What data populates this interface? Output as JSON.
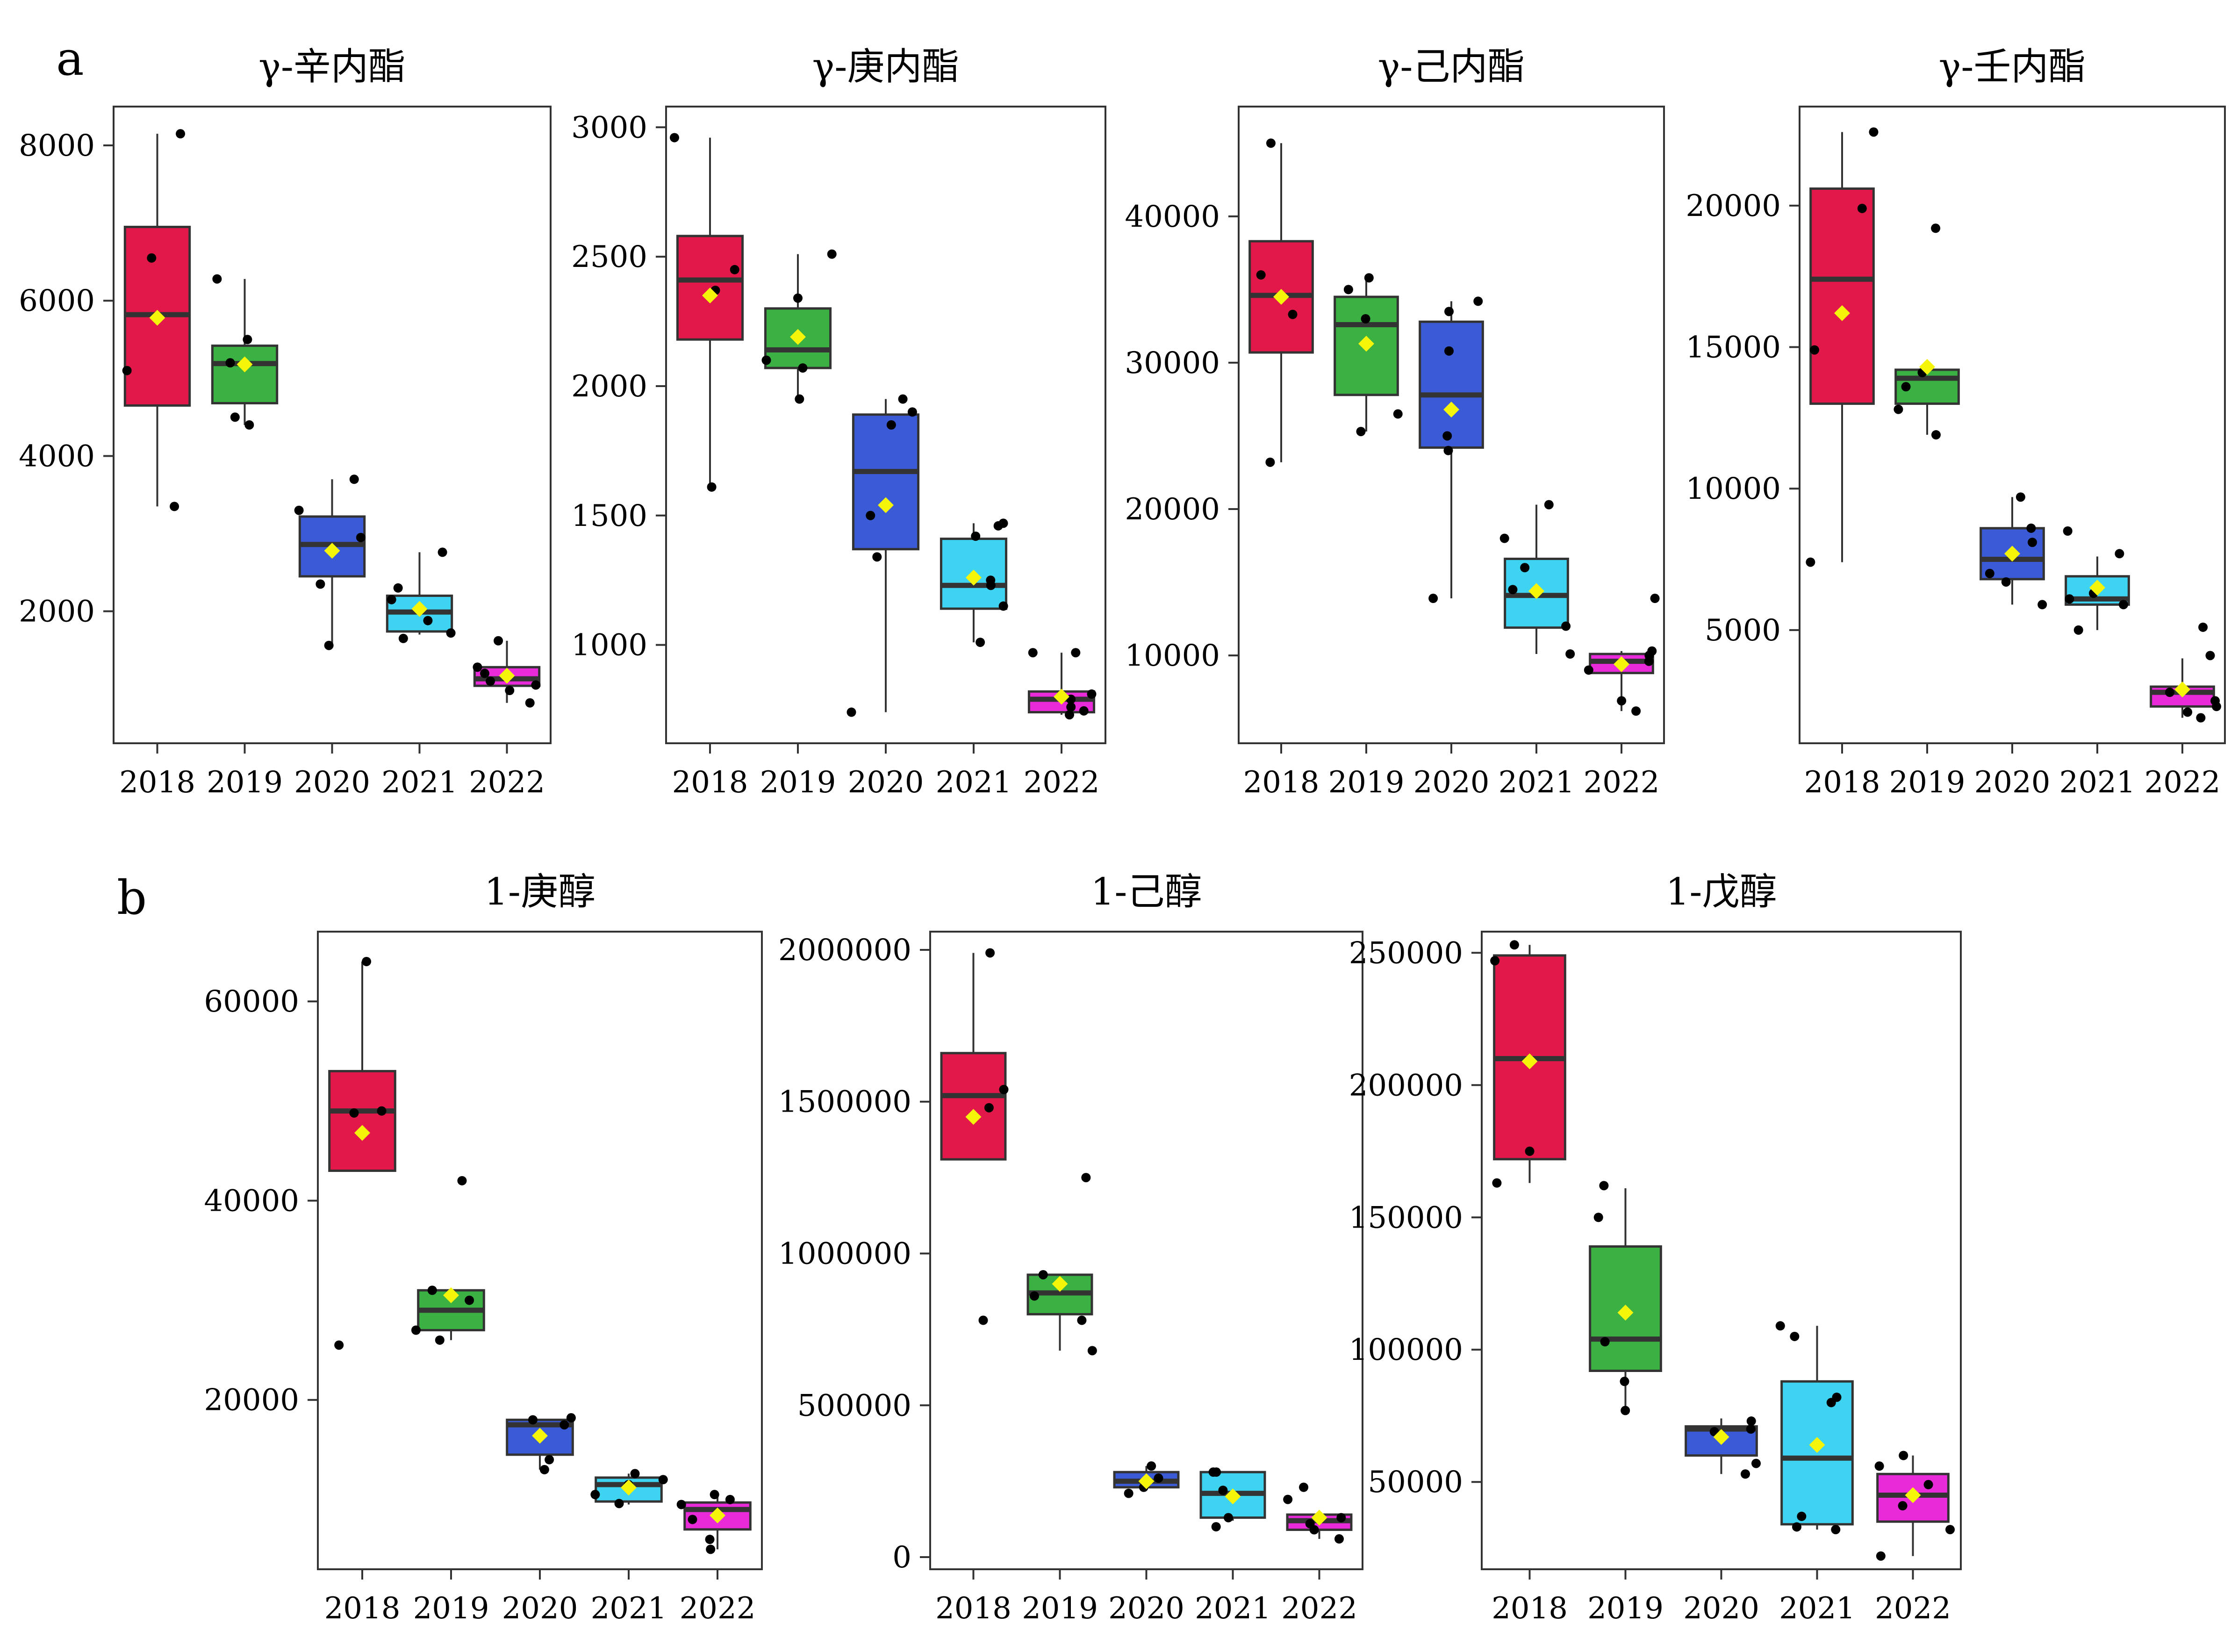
{
  "figure": {
    "panel_labels": [
      "a",
      "b"
    ]
  },
  "colors": {
    "box": [
      "#E3184A",
      "#3BB143",
      "#3B5BD6",
      "#3FD3F2",
      "#E82AD9"
    ],
    "mean_marker": "#F5F50A",
    "points": "#000000",
    "median": "#333333",
    "frame": "#333333"
  },
  "chart_data": [
    {
      "type": "box",
      "panel": "a",
      "title": "γ-辛内酯",
      "categories": [
        "2018",
        "2019",
        "2020",
        "2021",
        "2022"
      ],
      "ylim": [
        300,
        8500
      ],
      "yticks": [
        2000,
        4000,
        6000,
        8000
      ],
      "ytick_labels": [
        "2000",
        "4000",
        "6000",
        "8000"
      ],
      "boxes": [
        {
          "whislo": 3350,
          "q1": 4650,
          "med": 5820,
          "q3": 6950,
          "whishi": 8150,
          "mean": 5780,
          "points": [
            3350,
            5100,
            6550,
            8150
          ]
        },
        {
          "whislo": 4400,
          "q1": 4680,
          "med": 5190,
          "q3": 5420,
          "whishi": 6280,
          "mean": 5180,
          "points": [
            4400,
            4500,
            5200,
            5500,
            6280
          ]
        },
        {
          "whislo": 1560,
          "q1": 2450,
          "med": 2860,
          "q3": 3220,
          "whishi": 3700,
          "mean": 2780,
          "points": [
            1560,
            2350,
            2950,
            3300,
            3700
          ]
        },
        {
          "whislo": 1700,
          "q1": 1740,
          "med": 1990,
          "q3": 2200,
          "whishi": 2760,
          "mean": 2030,
          "points": [
            1650,
            1720,
            1880,
            2150,
            2300,
            2760
          ]
        },
        {
          "whislo": 820,
          "q1": 1040,
          "med": 1130,
          "q3": 1280,
          "whishi": 1620,
          "mean": 1170,
          "points": [
            820,
            980,
            1050,
            1100,
            1200,
            1280,
            1620
          ]
        }
      ]
    },
    {
      "type": "box",
      "panel": "a",
      "title": "γ-庚内酯",
      "categories": [
        "2018",
        "2019",
        "2020",
        "2021",
        "2022"
      ],
      "ylim": [
        620,
        3080
      ],
      "yticks": [
        1000,
        1500,
        2000,
        2500,
        3000
      ],
      "ytick_labels": [
        "1000",
        "1500",
        "2000",
        "2500",
        "3000"
      ],
      "boxes": [
        {
          "whislo": 1610,
          "q1": 2180,
          "med": 2410,
          "q3": 2580,
          "whishi": 2960,
          "mean": 2350,
          "points": [
            1610,
            2370,
            2450,
            2960
          ]
        },
        {
          "whislo": 1950,
          "q1": 2070,
          "med": 2140,
          "q3": 2300,
          "whishi": 2510,
          "mean": 2190,
          "points": [
            1950,
            2070,
            2100,
            2340,
            2510
          ]
        },
        {
          "whislo": 740,
          "q1": 1370,
          "med": 1670,
          "q3": 1890,
          "whishi": 1950,
          "mean": 1540,
          "points": [
            740,
            1340,
            1500,
            1850,
            1900,
            1950
          ]
        },
        {
          "whislo": 1010,
          "q1": 1140,
          "med": 1230,
          "q3": 1410,
          "whishi": 1470,
          "mean": 1260,
          "points": [
            1010,
            1150,
            1230,
            1250,
            1420,
            1460,
            1470
          ]
        },
        {
          "whislo": 730,
          "q1": 740,
          "med": 790,
          "q3": 820,
          "whishi": 970,
          "mean": 800,
          "points": [
            730,
            745,
            760,
            790,
            810,
            970,
            970
          ]
        }
      ]
    },
    {
      "type": "box",
      "panel": "a",
      "title": "γ-己内酯",
      "categories": [
        "2018",
        "2019",
        "2020",
        "2021",
        "2022"
      ],
      "ylim": [
        4000,
        47500
      ],
      "yticks": [
        10000,
        20000,
        30000,
        40000
      ],
      "ytick_labels": [
        "10000",
        "20000",
        "30000",
        "40000"
      ],
      "boxes": [
        {
          "whislo": 23200,
          "q1": 30700,
          "med": 34600,
          "q3": 38300,
          "whishi": 45000,
          "mean": 34500,
          "points": [
            23200,
            33300,
            36000,
            45000
          ]
        },
        {
          "whislo": 25300,
          "q1": 27800,
          "med": 32600,
          "q3": 34500,
          "whishi": 35800,
          "mean": 31300,
          "points": [
            25300,
            26500,
            33000,
            35000,
            35800
          ]
        },
        {
          "whislo": 13900,
          "q1": 24200,
          "med": 27800,
          "q3": 32800,
          "whishi": 34200,
          "mean": 26800,
          "points": [
            13900,
            24000,
            25000,
            30800,
            33500,
            34200
          ]
        },
        {
          "whislo": 10100,
          "q1": 11900,
          "med": 14100,
          "q3": 16600,
          "whishi": 20300,
          "mean": 14400,
          "points": [
            10100,
            12000,
            14500,
            16000,
            18000,
            20300
          ]
        },
        {
          "whislo": 6200,
          "q1": 8800,
          "med": 9600,
          "q3": 10100,
          "whishi": 10300,
          "mean": 9400,
          "points": [
            6200,
            6900,
            9000,
            9600,
            10000,
            10300,
            13900
          ]
        }
      ]
    },
    {
      "type": "box",
      "panel": "a",
      "title": "γ-壬内酯",
      "categories": [
        "2018",
        "2019",
        "2020",
        "2021",
        "2022"
      ],
      "ylim": [
        1000,
        23500
      ],
      "yticks": [
        5000,
        10000,
        15000,
        20000
      ],
      "ytick_labels": [
        "5000",
        "10000",
        "15000",
        "20000"
      ],
      "boxes": [
        {
          "whislo": 7400,
          "q1": 13000,
          "med": 17400,
          "q3": 20600,
          "whishi": 22600,
          "mean": 16200,
          "points": [
            7400,
            14900,
            19900,
            22600
          ]
        },
        {
          "whislo": 11900,
          "q1": 13000,
          "med": 13900,
          "q3": 14200,
          "whishi": 14300,
          "mean": 14300,
          "points": [
            11900,
            12800,
            13600,
            14100,
            19200
          ]
        },
        {
          "whislo": 5900,
          "q1": 6800,
          "med": 7500,
          "q3": 8600,
          "whishi": 9700,
          "mean": 7700,
          "points": [
            5900,
            6700,
            7000,
            8100,
            8600,
            9700
          ]
        },
        {
          "whislo": 5000,
          "q1": 5900,
          "med": 6100,
          "q3": 6900,
          "whishi": 7600,
          "mean": 6500,
          "points": [
            5000,
            5900,
            6100,
            6300,
            7700,
            8500
          ]
        },
        {
          "whislo": 1900,
          "q1": 2300,
          "med": 2800,
          "q3": 3000,
          "whishi": 4000,
          "mean": 2900,
          "points": [
            1900,
            2100,
            2300,
            2500,
            2800,
            4100,
            5100
          ]
        }
      ]
    },
    {
      "type": "box",
      "panel": "b",
      "title": "1-庚醇",
      "categories": [
        "2018",
        "2019",
        "2020",
        "2021",
        "2022"
      ],
      "ylim": [
        3000,
        67000
      ],
      "yticks": [
        20000,
        40000,
        60000
      ],
      "ytick_labels": [
        "20000",
        "40000",
        "60000"
      ],
      "boxes": [
        {
          "whislo": 43000,
          "q1": 43000,
          "med": 49000,
          "q3": 53000,
          "whishi": 64000,
          "mean": 46800,
          "points": [
            25500,
            49000,
            48800,
            64000
          ]
        },
        {
          "whislo": 26000,
          "q1": 27000,
          "med": 29000,
          "q3": 31000,
          "whishi": 31000,
          "mean": 30500,
          "points": [
            26000,
            27000,
            30000,
            31000,
            42000
          ]
        },
        {
          "whislo": 13000,
          "q1": 14500,
          "med": 17500,
          "q3": 18000,
          "whishi": 18000,
          "mean": 16400,
          "points": [
            13000,
            14000,
            17500,
            18000,
            18200
          ]
        },
        {
          "whislo": 9500,
          "q1": 9800,
          "med": 11500,
          "q3": 12200,
          "whishi": 12600,
          "mean": 11200,
          "points": [
            9600,
            10500,
            11500,
            12000,
            12600
          ]
        },
        {
          "whislo": 5000,
          "q1": 7000,
          "med": 9000,
          "q3": 9700,
          "whishi": 10500,
          "mean": 8400,
          "points": [
            5000,
            6000,
            8000,
            9500,
            10000,
            10500
          ]
        }
      ]
    },
    {
      "type": "box",
      "panel": "b",
      "title": "1-己醇",
      "categories": [
        "2018",
        "2019",
        "2020",
        "2021",
        "2022"
      ],
      "ylim": [
        -40000,
        2060000
      ],
      "yticks": [
        0,
        500000,
        1000000,
        1500000,
        2000000
      ],
      "ytick_labels": [
        "0",
        "500000",
        "1000000",
        "1500000",
        "2000000"
      ],
      "boxes": [
        {
          "whislo": 1310000,
          "q1": 1310000,
          "med": 1520000,
          "q3": 1660000,
          "whishi": 1990000,
          "mean": 1450000,
          "points": [
            780000,
            1480000,
            1540000,
            1990000
          ]
        },
        {
          "whislo": 680000,
          "q1": 800000,
          "med": 870000,
          "q3": 930000,
          "whishi": 930000,
          "mean": 900000,
          "points": [
            680000,
            780000,
            860000,
            930000,
            1250000
          ]
        },
        {
          "whislo": 220000,
          "q1": 230000,
          "med": 250000,
          "q3": 280000,
          "whishi": 300000,
          "mean": 250000,
          "points": [
            210000,
            230000,
            260000,
            300000
          ]
        },
        {
          "whislo": 120000,
          "q1": 130000,
          "med": 210000,
          "q3": 280000,
          "whishi": 280000,
          "mean": 200000,
          "points": [
            100000,
            130000,
            220000,
            280000,
            280000
          ]
        },
        {
          "whislo": 60000,
          "q1": 90000,
          "med": 120000,
          "q3": 140000,
          "whishi": 140000,
          "mean": 130000,
          "points": [
            60000,
            90000,
            110000,
            130000,
            190000,
            230000
          ]
        }
      ]
    },
    {
      "type": "box",
      "panel": "b",
      "title": "1-戊醇",
      "categories": [
        "2018",
        "2019",
        "2020",
        "2021",
        "2022"
      ],
      "ylim": [
        17000,
        258000
      ],
      "yticks": [
        50000,
        100000,
        150000,
        200000,
        250000
      ],
      "ytick_labels": [
        "50000",
        "100000",
        "150000",
        "200000",
        "250000"
      ],
      "boxes": [
        {
          "whislo": 163000,
          "q1": 172000,
          "med": 210000,
          "q3": 249000,
          "whishi": 253000,
          "mean": 209000,
          "points": [
            163000,
            175000,
            247000,
            253000
          ]
        },
        {
          "whislo": 77000,
          "q1": 92000,
          "med": 104000,
          "q3": 139000,
          "whishi": 161000,
          "mean": 114000,
          "points": [
            77000,
            88000,
            103000,
            150000,
            162000
          ]
        },
        {
          "whislo": 53000,
          "q1": 60000,
          "med": 70000,
          "q3": 71000,
          "whishi": 74000,
          "mean": 67000,
          "points": [
            53000,
            57000,
            69000,
            70000,
            73000
          ]
        },
        {
          "whislo": 32000,
          "q1": 34000,
          "med": 59000,
          "q3": 88000,
          "whishi": 109000,
          "mean": 64000,
          "points": [
            32000,
            33000,
            37000,
            80000,
            82000,
            105000,
            109000
          ]
        },
        {
          "whislo": 22000,
          "q1": 35000,
          "med": 45000,
          "q3": 53000,
          "whishi": 60000,
          "mean": 45000,
          "points": [
            22000,
            32000,
            41000,
            49000,
            56000,
            60000
          ]
        }
      ]
    }
  ]
}
